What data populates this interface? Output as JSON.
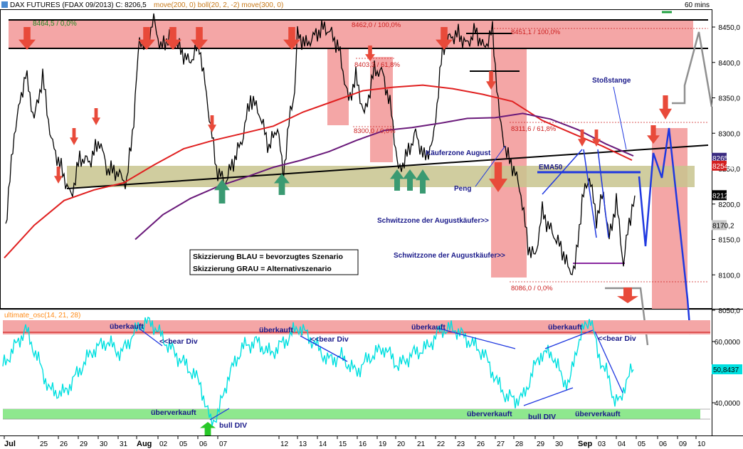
{
  "header": {
    "instrument": "DAX FUTURES (FDAX 09/2013) C: 8206,5",
    "indicators": "move(200, 0) boll(20, 2, -2) move(300, 0)",
    "interval": "60 mins"
  },
  "osc_header": "ultimate_osc(14, 21, 28)",
  "chart_data": {
    "type": "line",
    "title": "DAX FUTURES (FDAX 09/2013) C: 8206,5",
    "x_tick_labels": [
      "Jul",
      "25",
      "26",
      "29",
      "30",
      "31",
      "Aug",
      "02",
      "05",
      "06",
      "07",
      "12",
      "13",
      "14",
      "15",
      "16",
      "19",
      "20",
      "21",
      "22",
      "23",
      "26",
      "27",
      "28",
      "29",
      "30",
      "Sep",
      "03",
      "04",
      "05",
      "06",
      "09",
      "10"
    ],
    "price_axis": {
      "ticks": [
        "8450,0",
        "8400,0",
        "8350,0",
        "8300,0",
        "8250,0",
        "8200,0",
        "8150,0",
        "8100,0",
        "8050,0"
      ],
      "ylim": [
        8040,
        8475
      ]
    },
    "osc_axis": {
      "ticks": [
        "60,0000",
        "40,0000"
      ],
      "ylim": [
        30,
        70
      ]
    },
    "price_badges": [
      {
        "label": "8265,3",
        "value": 8265.3,
        "color": "#3a2a80"
      },
      {
        "label": "8254,2",
        "value": 8254.2,
        "color": "#d42020"
      },
      {
        "label": "8212,5",
        "value": 8212.5,
        "color": "#000000"
      },
      {
        "label": "8170,2",
        "value": 8170.2,
        "color": "#c9c9c9"
      }
    ],
    "osc_badge": {
      "label": "50,8437",
      "value": 50.84,
      "color": "#00e0e0"
    },
    "series": [
      {
        "name": "move(200, 0)",
        "color": "#e02020",
        "values": [
          8124,
          8170,
          8205,
          8220,
          8230,
          8255,
          8278,
          8290,
          8300,
          8310,
          8330,
          8345,
          8360,
          8365,
          8368,
          8363,
          8355,
          8345,
          8318,
          8300,
          8282,
          8262
        ]
      },
      {
        "name": "move(300, 0)",
        "color": "#6a1a7a",
        "values": [
          8150,
          8185,
          8208,
          8225,
          8238,
          8252,
          8262,
          8274,
          8290,
          8304,
          8308,
          8314,
          8321,
          8322,
          8328,
          8320,
          8305,
          8285,
          8268
        ]
      }
    ],
    "annotations": [
      {
        "text": "8464,5 / 0,0%",
        "color": "#228822"
      },
      {
        "text": "8462,0 / 100,0%",
        "color": "#cc2020"
      },
      {
        "text": "8451,1 / 100,0%",
        "color": "#cc2020"
      },
      {
        "text": "8403,3 / 61,8%",
        "color": "#cc2020"
      },
      {
        "text": "8300,0 / 0,0%",
        "color": "#cc2020"
      },
      {
        "text": "8311,6 / 61,8%",
        "color": "#cc2020"
      },
      {
        "text": "8086,0 / 0,0%",
        "color": "#cc2020"
      },
      {
        "text": "Stoßstange",
        "color": "#1a1a8a"
      },
      {
        "text": "Käuferzone August",
        "color": "#1a1a8a"
      },
      {
        "text": "EMA50",
        "color": "#1a1a8a"
      },
      {
        "text": "Peng",
        "color": "#1a1a8a"
      },
      {
        "text": "Schwitzzone der Augustkäufer>>",
        "color": "#1a1a8a"
      },
      {
        "text": "Schwitzzone der Augustkäufer>>",
        "color": "#1a1a8a"
      }
    ],
    "osc_annotations": [
      {
        "text": "überkauft"
      },
      {
        "text": "<<bear Div"
      },
      {
        "text": "überkauft"
      },
      {
        "text": "<<bear Div"
      },
      {
        "text": "überkauft"
      },
      {
        "text": "überkauft"
      },
      {
        "text": "<<bear Div"
      },
      {
        "text": "überverkauft"
      },
      {
        "text": "bull DIV"
      },
      {
        "text": "überverkauft"
      },
      {
        "text": "bull DIV"
      },
      {
        "text": "überverkauft"
      }
    ]
  },
  "legend_box": {
    "line1": "Skizzierung BLAU = bevorzugtes Szenario",
    "line2": "Skizzierung GRAU = Alternativszenario"
  },
  "colors": {
    "zone_red": "#f4a6a6",
    "zone_khaki": "#c8c48e",
    "arrow_red": "#e84a3a",
    "arrow_green": "#3a9a72",
    "blue_sketch": "#1f38e0",
    "grey_sketch": "#909090"
  }
}
